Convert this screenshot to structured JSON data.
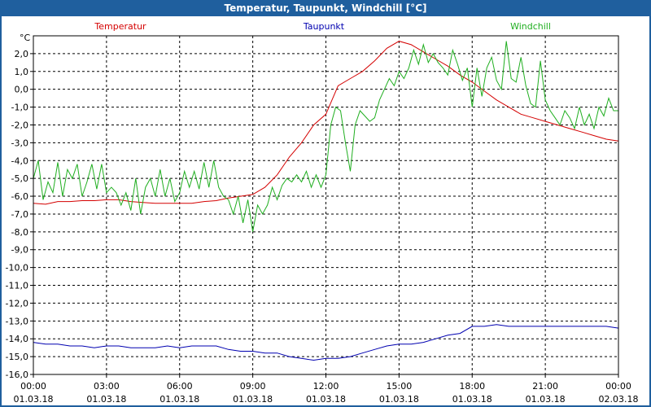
{
  "window": {
    "title": "Temperatur, Taupunkt, Windchill [°C]"
  },
  "chart_data": {
    "type": "line",
    "title": "Temperatur, Taupunkt, Windchill [°C]",
    "ylabel": "°C",
    "ylim": [
      -16,
      3
    ],
    "yticks": [
      2,
      1,
      0,
      -1,
      -2,
      -3,
      -4,
      -5,
      -6,
      -7,
      -8,
      -9,
      -10,
      -11,
      -12,
      -13,
      -14,
      -15,
      -16
    ],
    "ytick_labels": [
      "2,0",
      "1,0",
      "0,0",
      "-1,0",
      "-2,0",
      "-3,0",
      "-4,0",
      "-5,0",
      "-6,0",
      "-7,0",
      "-8,0",
      "-9,0",
      "-10,0",
      "-11,0",
      "-12,0",
      "-13,0",
      "-14,0",
      "-15,0",
      "-16,0"
    ],
    "xlim": [
      0,
      24
    ],
    "xticks": [
      {
        "x": 0,
        "time": "00:00",
        "date": "01.03.18"
      },
      {
        "x": 3,
        "time": "03:00",
        "date": "01.03.18"
      },
      {
        "x": 6,
        "time": "06:00",
        "date": "01.03.18"
      },
      {
        "x": 9,
        "time": "09:00",
        "date": "01.03.18"
      },
      {
        "x": 12,
        "time": "12:00",
        "date": "01.03.18"
      },
      {
        "x": 15,
        "time": "15:00",
        "date": "01.03.18"
      },
      {
        "x": 18,
        "time": "18:00",
        "date": "01.03.18"
      },
      {
        "x": 21,
        "time": "21:00",
        "date": "01.03.18"
      },
      {
        "x": 24,
        "time": "00:00",
        "date": "02.03.18"
      }
    ],
    "grid": true,
    "legend": "top",
    "series": [
      {
        "name": "Temperatur",
        "color": "#d40000",
        "x": [
          0,
          0.5,
          1,
          1.5,
          2,
          2.5,
          3,
          3.5,
          4,
          4.5,
          5,
          5.5,
          6,
          6.5,
          7,
          7.5,
          8,
          8.5,
          9,
          9.5,
          10,
          10.5,
          11,
          11.5,
          12,
          12.5,
          13,
          13.5,
          14,
          14.5,
          15,
          15.5,
          16,
          16.5,
          17,
          17.5,
          18,
          18.5,
          19,
          19.5,
          20,
          20.5,
          21,
          21.5,
          22,
          22.5,
          23,
          23.5,
          24
        ],
        "y": [
          -6.4,
          -6.45,
          -6.3,
          -6.3,
          -6.25,
          -6.25,
          -6.2,
          -6.2,
          -6.3,
          -6.35,
          -6.4,
          -6.4,
          -6.4,
          -6.4,
          -6.3,
          -6.25,
          -6.1,
          -6.0,
          -5.9,
          -5.5,
          -4.8,
          -3.8,
          -3.0,
          -2.0,
          -1.4,
          0.2,
          0.6,
          1.0,
          1.6,
          2.3,
          2.7,
          2.5,
          2.1,
          1.7,
          1.3,
          0.8,
          0.4,
          -0.1,
          -0.6,
          -1.0,
          -1.4,
          -1.6,
          -1.8,
          -2.0,
          -2.2,
          -2.4,
          -2.6,
          -2.8,
          -2.9
        ]
      },
      {
        "name": "Taupunkt",
        "color": "#0000b0",
        "x": [
          0,
          0.5,
          1,
          1.5,
          2,
          2.5,
          3,
          3.5,
          4,
          4.5,
          5,
          5.5,
          6,
          6.5,
          7,
          7.5,
          8,
          8.5,
          9,
          9.5,
          10,
          10.5,
          11,
          11.5,
          12,
          12.5,
          13,
          13.5,
          14,
          14.5,
          15,
          15.5,
          16,
          16.5,
          17,
          17.5,
          18,
          18.5,
          19,
          19.5,
          20,
          20.5,
          21,
          21.5,
          22,
          22.5,
          23,
          23.5,
          24
        ],
        "y": [
          -14.2,
          -14.3,
          -14.3,
          -14.4,
          -14.4,
          -14.5,
          -14.4,
          -14.4,
          -14.5,
          -14.5,
          -14.5,
          -14.4,
          -14.5,
          -14.4,
          -14.4,
          -14.4,
          -14.6,
          -14.7,
          -14.7,
          -14.8,
          -14.8,
          -15.0,
          -15.1,
          -15.2,
          -15.1,
          -15.1,
          -15.0,
          -14.8,
          -14.6,
          -14.4,
          -14.3,
          -14.3,
          -14.2,
          -14.0,
          -13.8,
          -13.7,
          -13.3,
          -13.3,
          -13.2,
          -13.3,
          -13.3,
          -13.3,
          -13.3,
          -13.3,
          -13.3,
          -13.3,
          -13.3,
          -13.3,
          -13.4
        ]
      },
      {
        "name": "Windchill",
        "color": "#1fae1f",
        "x": [
          0,
          0.2,
          0.4,
          0.6,
          0.8,
          1.0,
          1.2,
          1.4,
          1.6,
          1.8,
          2.0,
          2.2,
          2.4,
          2.6,
          2.8,
          3.0,
          3.2,
          3.4,
          3.6,
          3.8,
          4.0,
          4.2,
          4.4,
          4.6,
          4.8,
          5.0,
          5.2,
          5.4,
          5.6,
          5.8,
          6.0,
          6.2,
          6.4,
          6.6,
          6.8,
          7.0,
          7.2,
          7.4,
          7.6,
          7.8,
          8.0,
          8.2,
          8.4,
          8.6,
          8.8,
          9.0,
          9.2,
          9.4,
          9.6,
          9.8,
          10.0,
          10.2,
          10.4,
          10.6,
          10.8,
          11.0,
          11.2,
          11.4,
          11.6,
          11.8,
          12.0,
          12.2,
          12.4,
          12.6,
          12.8,
          13.0,
          13.2,
          13.4,
          13.6,
          13.8,
          14.0,
          14.2,
          14.4,
          14.6,
          14.8,
          15.0,
          15.2,
          15.4,
          15.6,
          15.8,
          16.0,
          16.2,
          16.4,
          16.6,
          16.8,
          17.0,
          17.2,
          17.4,
          17.6,
          17.8,
          18.0,
          18.2,
          18.4,
          18.6,
          18.8,
          19.0,
          19.2,
          19.4,
          19.6,
          19.8,
          20.0,
          20.2,
          20.4,
          20.6,
          20.8,
          21.0,
          21.2,
          21.4,
          21.6,
          21.8,
          22.0,
          22.2,
          22.4,
          22.6,
          22.8,
          23.0,
          23.2,
          23.4,
          23.6,
          23.8,
          24.0
        ],
        "y": [
          -5.0,
          -4.0,
          -6.2,
          -5.2,
          -5.8,
          -4.1,
          -6.0,
          -4.5,
          -5.0,
          -4.2,
          -6.0,
          -5.2,
          -4.2,
          -5.6,
          -4.2,
          -5.8,
          -5.5,
          -5.8,
          -6.5,
          -5.8,
          -6.8,
          -5.0,
          -7.0,
          -5.5,
          -5.0,
          -6.0,
          -4.5,
          -6.0,
          -5.0,
          -6.3,
          -5.8,
          -4.6,
          -5.5,
          -4.6,
          -5.6,
          -4.1,
          -5.5,
          -4.0,
          -5.5,
          -6.0,
          -6.2,
          -7.0,
          -6.0,
          -7.5,
          -6.2,
          -8.0,
          -6.5,
          -7.0,
          -6.5,
          -5.5,
          -6.2,
          -5.4,
          -5.0,
          -5.2,
          -4.8,
          -5.2,
          -4.6,
          -5.5,
          -4.8,
          -5.5,
          -4.8,
          -2.0,
          -1.0,
          -1.2,
          -3.0,
          -4.6,
          -2.0,
          -1.2,
          -1.5,
          -1.8,
          -1.6,
          -0.6,
          0.0,
          0.6,
          0.2,
          1.0,
          0.6,
          1.2,
          2.2,
          1.4,
          2.5,
          1.5,
          2.0,
          1.5,
          1.2,
          0.8,
          2.2,
          1.4,
          0.5,
          1.2,
          -1.0,
          1.2,
          -0.4,
          1.2,
          1.8,
          0.5,
          0.0,
          2.7,
          0.6,
          0.4,
          1.8,
          0.2,
          -0.8,
          -1.0,
          1.6,
          -0.6,
          -1.2,
          -1.6,
          -2.0,
          -1.2,
          -1.6,
          -2.2,
          -1.0,
          -2.0,
          -1.4,
          -2.2,
          -1.0,
          -1.5,
          -0.5,
          -1.2,
          -1.2
        ]
      }
    ]
  }
}
